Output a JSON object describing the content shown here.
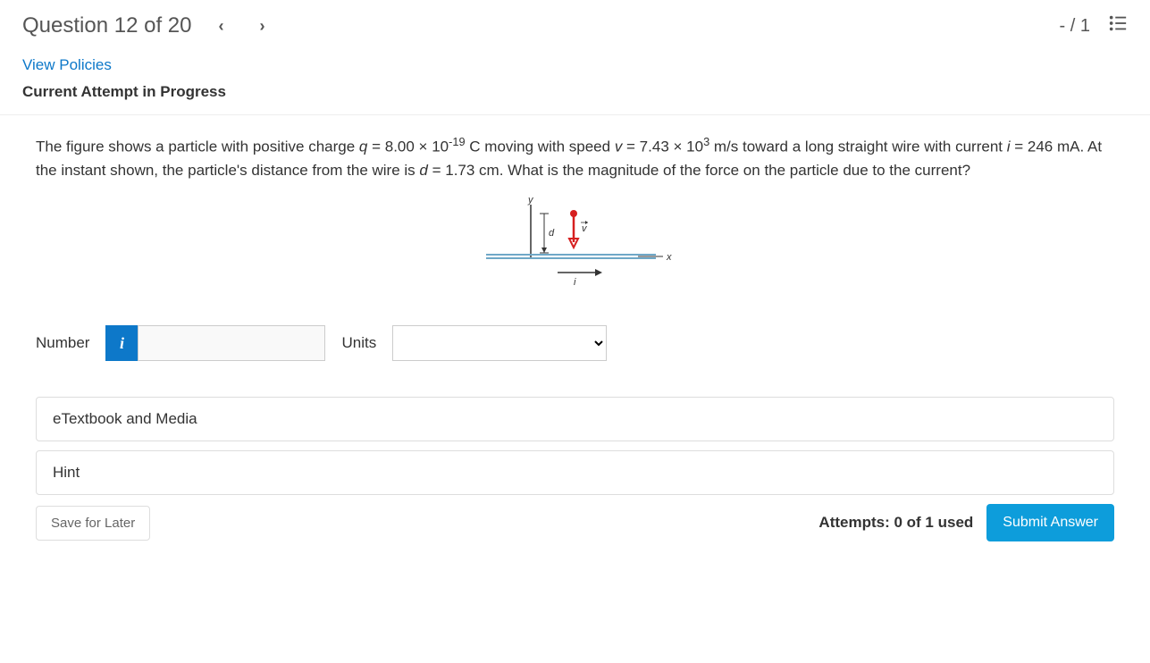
{
  "header": {
    "title": "Question 12 of 20",
    "score": "- / 1"
  },
  "meta": {
    "view_policies": "View Policies",
    "attempt_status": "Current Attempt in Progress"
  },
  "problem": {
    "text_html": "The figure shows a particle with positive charge <i>q</i> = 8.00 × 10<sup>-19</sup> C moving with speed <i>v</i> = 7.43 × 10<sup>3</sup> m/s toward a long straight wire with current <i>i</i> = 246 mA. At the instant shown, the particle's distance from the wire is <i>d</i> = 1.73 cm. What is the magnitude of the force on the particle due to the current?",
    "figure": {
      "y_label": "y",
      "x_label": "x",
      "d_label": "d",
      "v_label": "v",
      "i_label": "i",
      "wire_color": "#6fa8c7",
      "arrow_color": "#d61f1f",
      "text_color": "#333333"
    }
  },
  "answer": {
    "number_label": "Number",
    "units_label": "Units",
    "number_value": "",
    "units_value": ""
  },
  "accordions": {
    "etext": "eTextbook and Media",
    "hint": "Hint"
  },
  "footer": {
    "save": "Save for Later",
    "attempts": "Attempts: 0 of 1 used",
    "submit": "Submit Answer"
  },
  "colors": {
    "link": "#0d78c9",
    "primary": "#0d9ddb"
  }
}
